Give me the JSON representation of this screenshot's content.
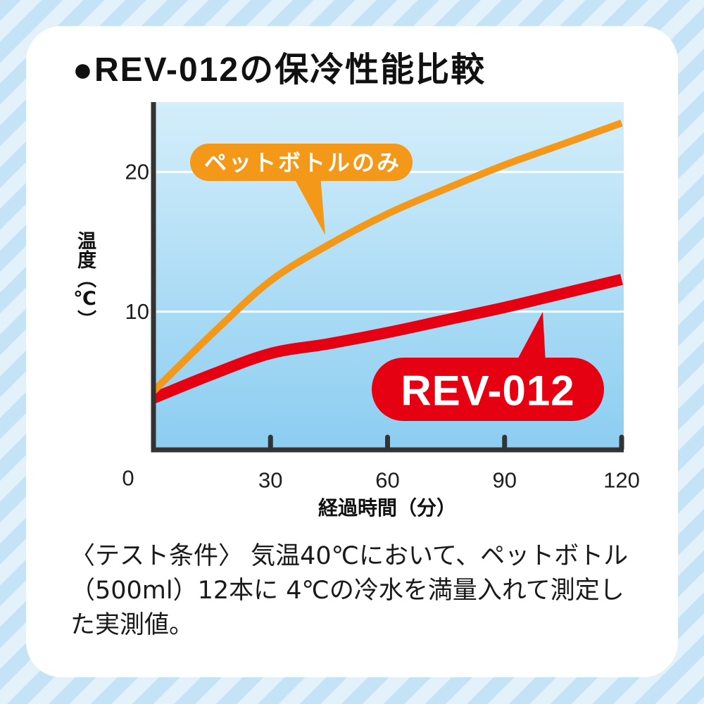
{
  "title": "●REV-012の保冷性能比較",
  "chart_data": {
    "type": "line",
    "xlabel": "経過時間（分）",
    "ylabel": "温度（℃）",
    "xlim": [
      0,
      120
    ],
    "ylim": [
      0,
      25
    ],
    "x_ticks": [
      30,
      60,
      90,
      120
    ],
    "y_ticks": [
      10,
      20
    ],
    "origin_tick": 0,
    "grid": true,
    "x": [
      0,
      15,
      30,
      45,
      60,
      75,
      90,
      105,
      120
    ],
    "series": [
      {
        "name": "ペットボトルのみ",
        "color": "#f39818",
        "values": [
          4.3,
          8.4,
          12.2,
          14.8,
          17.0,
          18.8,
          20.5,
          22.0,
          23.5
        ]
      },
      {
        "name": "REV-012",
        "color": "#e50012",
        "values": [
          3.8,
          5.5,
          7.0,
          7.7,
          8.5,
          9.4,
          10.3,
          11.3,
          12.3
        ]
      }
    ]
  },
  "notes": {
    "lines": [
      "〈テスト条件〉 気温40℃において、ペットボトル",
      "（500ml）12本に 4℃の冷水を満量入れて測定し",
      "た実測値。"
    ]
  }
}
